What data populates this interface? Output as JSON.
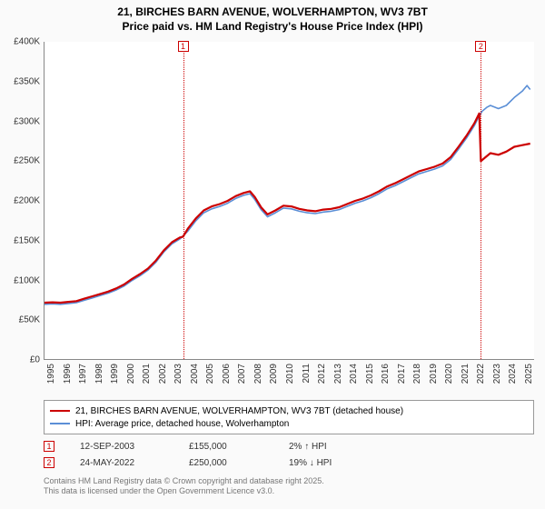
{
  "title_line1": "21, BIRCHES BARN AVENUE, WOLVERHAMPTON, WV3 7BT",
  "title_line2": "Price paid vs. HM Land Registry's House Price Index (HPI)",
  "chart": {
    "type": "line",
    "background_color": "#ffffff",
    "xlim": [
      1995,
      2025.8
    ],
    "ylim": [
      0,
      400000
    ],
    "ytick_step": 50000,
    "yticks": [
      "£0",
      "£50K",
      "£100K",
      "£150K",
      "£200K",
      "£250K",
      "£300K",
      "£350K",
      "£400K"
    ],
    "xticks": [
      1995,
      1996,
      1997,
      1998,
      1999,
      2000,
      2001,
      2002,
      2003,
      2004,
      2005,
      2006,
      2007,
      2008,
      2009,
      2010,
      2011,
      2012,
      2013,
      2014,
      2015,
      2016,
      2017,
      2018,
      2019,
      2020,
      2021,
      2022,
      2023,
      2024,
      2025
    ],
    "series": [
      {
        "name": "price_paid",
        "color": "#cc0000",
        "width": 2.2,
        "label": "21, BIRCHES BARN AVENUE, WOLVERHAMPTON, WV3 7BT (detached house)",
        "points": [
          [
            1995.0,
            72000
          ],
          [
            1995.5,
            72500
          ],
          [
            1996.0,
            72000
          ],
          [
            1996.5,
            73000
          ],
          [
            1997.0,
            74000
          ],
          [
            1997.5,
            77000
          ],
          [
            1998.0,
            80000
          ],
          [
            1998.5,
            83000
          ],
          [
            1999.0,
            86000
          ],
          [
            1999.5,
            90000
          ],
          [
            2000.0,
            95000
          ],
          [
            2000.5,
            102000
          ],
          [
            2001.0,
            108000
          ],
          [
            2001.5,
            115000
          ],
          [
            2002.0,
            125000
          ],
          [
            2002.5,
            138000
          ],
          [
            2003.0,
            148000
          ],
          [
            2003.5,
            154000
          ],
          [
            2003.7,
            155000
          ],
          [
            2004.0,
            165000
          ],
          [
            2004.5,
            178000
          ],
          [
            2005.0,
            188000
          ],
          [
            2005.5,
            193000
          ],
          [
            2006.0,
            196000
          ],
          [
            2006.5,
            200000
          ],
          [
            2007.0,
            206000
          ],
          [
            2007.5,
            210000
          ],
          [
            2007.9,
            212000
          ],
          [
            2008.2,
            205000
          ],
          [
            2008.6,
            192000
          ],
          [
            2009.0,
            183000
          ],
          [
            2009.5,
            188000
          ],
          [
            2010.0,
            194000
          ],
          [
            2010.5,
            193000
          ],
          [
            2011.0,
            190000
          ],
          [
            2011.5,
            188000
          ],
          [
            2012.0,
            187000
          ],
          [
            2012.5,
            189000
          ],
          [
            2013.0,
            190000
          ],
          [
            2013.5,
            192000
          ],
          [
            2014.0,
            196000
          ],
          [
            2014.5,
            200000
          ],
          [
            2015.0,
            203000
          ],
          [
            2015.5,
            207000
          ],
          [
            2016.0,
            212000
          ],
          [
            2016.5,
            218000
          ],
          [
            2017.0,
            222000
          ],
          [
            2017.5,
            227000
          ],
          [
            2018.0,
            232000
          ],
          [
            2018.5,
            237000
          ],
          [
            2019.0,
            240000
          ],
          [
            2019.5,
            243000
          ],
          [
            2020.0,
            247000
          ],
          [
            2020.5,
            255000
          ],
          [
            2021.0,
            268000
          ],
          [
            2021.5,
            282000
          ],
          [
            2022.0,
            298000
          ],
          [
            2022.3,
            310000
          ],
          [
            2022.4,
            250000
          ],
          [
            2022.7,
            255000
          ],
          [
            2023.0,
            260000
          ],
          [
            2023.5,
            258000
          ],
          [
            2024.0,
            262000
          ],
          [
            2024.5,
            268000
          ],
          [
            2025.0,
            270000
          ],
          [
            2025.5,
            272000
          ]
        ]
      },
      {
        "name": "hpi",
        "color": "#5b8fd6",
        "width": 1.6,
        "label": "HPI: Average price, detached house, Wolverhampton",
        "points": [
          [
            1995.0,
            70000
          ],
          [
            1995.5,
            70500
          ],
          [
            1996.0,
            70000
          ],
          [
            1996.5,
            71000
          ],
          [
            1997.0,
            72000
          ],
          [
            1997.5,
            75000
          ],
          [
            1998.0,
            78000
          ],
          [
            1998.5,
            81000
          ],
          [
            1999.0,
            84000
          ],
          [
            1999.5,
            88000
          ],
          [
            2000.0,
            93000
          ],
          [
            2000.5,
            100000
          ],
          [
            2001.0,
            106000
          ],
          [
            2001.5,
            113000
          ],
          [
            2002.0,
            123000
          ],
          [
            2002.5,
            136000
          ],
          [
            2003.0,
            146000
          ],
          [
            2003.5,
            152000
          ],
          [
            2004.0,
            162000
          ],
          [
            2004.5,
            175000
          ],
          [
            2005.0,
            185000
          ],
          [
            2005.5,
            190000
          ],
          [
            2006.0,
            193000
          ],
          [
            2006.5,
            197000
          ],
          [
            2007.0,
            203000
          ],
          [
            2007.5,
            207000
          ],
          [
            2007.9,
            209000
          ],
          [
            2008.2,
            202000
          ],
          [
            2008.6,
            189000
          ],
          [
            2009.0,
            180000
          ],
          [
            2009.5,
            185000
          ],
          [
            2010.0,
            191000
          ],
          [
            2010.5,
            190000
          ],
          [
            2011.0,
            187000
          ],
          [
            2011.5,
            185000
          ],
          [
            2012.0,
            184000
          ],
          [
            2012.5,
            186000
          ],
          [
            2013.0,
            187000
          ],
          [
            2013.5,
            189000
          ],
          [
            2014.0,
            193000
          ],
          [
            2014.5,
            197000
          ],
          [
            2015.0,
            200000
          ],
          [
            2015.5,
            204000
          ],
          [
            2016.0,
            209000
          ],
          [
            2016.5,
            215000
          ],
          [
            2017.0,
            219000
          ],
          [
            2017.5,
            224000
          ],
          [
            2018.0,
            229000
          ],
          [
            2018.5,
            234000
          ],
          [
            2019.0,
            237000
          ],
          [
            2019.5,
            240000
          ],
          [
            2020.0,
            244000
          ],
          [
            2020.5,
            252000
          ],
          [
            2021.0,
            265000
          ],
          [
            2021.5,
            279000
          ],
          [
            2022.0,
            295000
          ],
          [
            2022.3,
            307000
          ],
          [
            2022.5,
            313000
          ],
          [
            2022.8,
            318000
          ],
          [
            2023.0,
            320000
          ],
          [
            2023.5,
            316000
          ],
          [
            2024.0,
            320000
          ],
          [
            2024.5,
            330000
          ],
          [
            2025.0,
            338000
          ],
          [
            2025.3,
            345000
          ],
          [
            2025.5,
            340000
          ]
        ]
      }
    ],
    "sale_markers": [
      {
        "n": "1",
        "x": 2003.7,
        "color": "#cc0000"
      },
      {
        "n": "2",
        "x": 2022.4,
        "color": "#cc0000"
      }
    ]
  },
  "legend": {
    "items": [
      {
        "color": "#cc0000",
        "label_key": "chart.series.0.label"
      },
      {
        "color": "#5b8fd6",
        "label_key": "chart.series.1.label"
      }
    ]
  },
  "sales": [
    {
      "n": "1",
      "color": "#cc0000",
      "date": "12-SEP-2003",
      "price": "£155,000",
      "diff": "2% ↑ HPI"
    },
    {
      "n": "2",
      "color": "#cc0000",
      "date": "24-MAY-2022",
      "price": "£250,000",
      "diff": "19% ↓ HPI"
    }
  ],
  "footer_line1": "Contains HM Land Registry data © Crown copyright and database right 2025.",
  "footer_line2": "This data is licensed under the Open Government Licence v3.0."
}
